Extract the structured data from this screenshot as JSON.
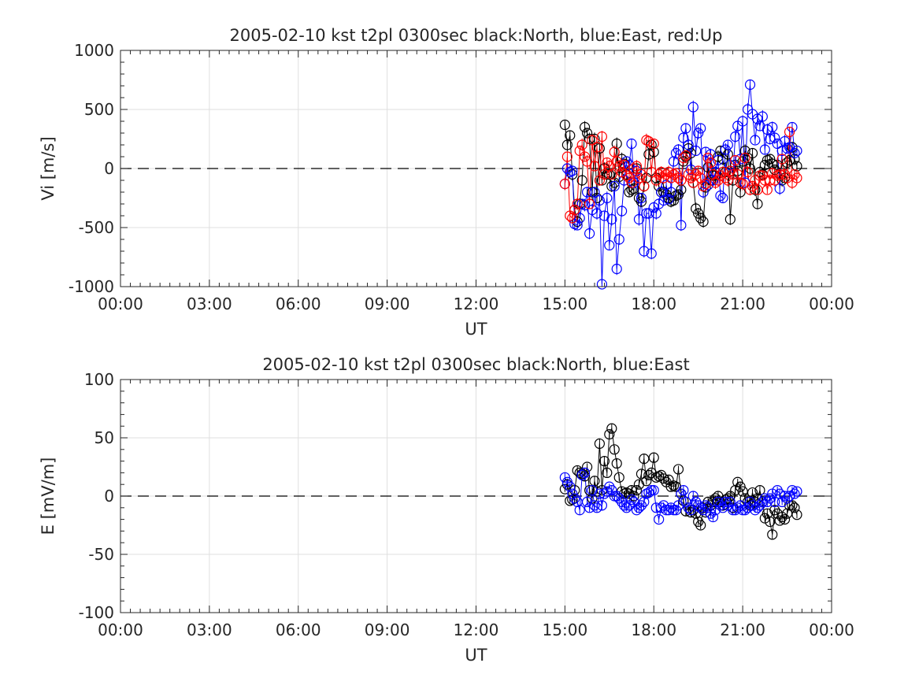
{
  "chart_data": [
    {
      "type": "scatter",
      "title": "2005-02-10 kst t2pl 0300sec black:North, blue:East, red:Up",
      "xlabel": "UT",
      "ylabel": "Vi [m/s]",
      "xlim": [
        0,
        24
      ],
      "ylim": [
        -1000,
        1000
      ],
      "xticks": [
        "00:00",
        "03:00",
        "06:00",
        "09:00",
        "12:00",
        "15:00",
        "18:00",
        "21:00",
        "00:00"
      ],
      "yticks": [
        "-1000",
        "-500",
        "0",
        "500",
        "1000"
      ],
      "grid": true,
      "reference_line": 0,
      "marker": "open circle with error bars",
      "series": [
        {
          "color": "#000000",
          "x": [
            15.0,
            15.08,
            15.17,
            15.25,
            15.33,
            15.42,
            15.5,
            15.58,
            15.67,
            15.75,
            15.83,
            15.92,
            16.0,
            16.08,
            16.17,
            16.25,
            16.33,
            16.42,
            16.5,
            16.58,
            16.67,
            16.75,
            16.83,
            16.92,
            17.0,
            17.08,
            17.17,
            17.25,
            17.33,
            17.42,
            17.5,
            17.58,
            17.67,
            17.75,
            17.83,
            17.92,
            18.0,
            18.08,
            18.17,
            18.25,
            18.33,
            18.42,
            18.5,
            18.58,
            18.67,
            18.75,
            18.83,
            18.92,
            19.0,
            19.08,
            19.17,
            19.25,
            19.33,
            19.42,
            19.5,
            19.58,
            19.67,
            19.75,
            19.83,
            19.92,
            20.0,
            20.08,
            20.17,
            20.25,
            20.33,
            20.42,
            20.5,
            20.58,
            20.67,
            20.75,
            20.83,
            20.92,
            21.0,
            21.08,
            21.17,
            21.25,
            21.33,
            21.42,
            21.5,
            21.58,
            21.67,
            21.75,
            21.83,
            21.92,
            22.0,
            22.08,
            22.17,
            22.25,
            22.33,
            22.42,
            22.5,
            22.58,
            22.67,
            22.75,
            22.83
          ],
          "y": [
            370,
            200,
            280,
            -50,
            -350,
            -450,
            -300,
            -100,
            350,
            300,
            250,
            -200,
            250,
            -250,
            170,
            -100,
            0,
            -50,
            -50,
            -150,
            -120,
            210,
            -70,
            80,
            40,
            -50,
            -200,
            -180,
            -170,
            0,
            -250,
            -280,
            -150,
            -80,
            120,
            200,
            140,
            -80,
            -150,
            -200,
            -200,
            -220,
            -250,
            -280,
            -270,
            -230,
            -220,
            -180,
            60,
            100,
            170,
            130,
            -120,
            -340,
            -380,
            -420,
            -450,
            -160,
            10,
            -100,
            -60,
            -60,
            100,
            150,
            80,
            -30,
            120,
            -430,
            -100,
            30,
            -20,
            -200,
            60,
            150,
            90,
            0,
            130,
            -180,
            -300,
            -30,
            -50,
            30,
            70,
            80,
            40,
            -10,
            30,
            -50,
            -100,
            -80,
            50,
            70,
            180,
            80,
            20
          ]
        },
        {
          "color": "#0000ff",
          "x": [
            15.0,
            15.08,
            15.17,
            15.25,
            15.33,
            15.42,
            15.5,
            15.58,
            15.67,
            15.75,
            15.83,
            15.92,
            16.0,
            16.08,
            16.17,
            16.25,
            16.33,
            16.42,
            16.5,
            16.58,
            16.67,
            16.75,
            16.83,
            16.92,
            17.0,
            17.08,
            17.17,
            17.25,
            17.33,
            17.42,
            17.5,
            17.58,
            17.67,
            17.75,
            17.83,
            17.92,
            18.0,
            18.08,
            18.17,
            18.25,
            18.33,
            18.42,
            18.5,
            18.58,
            18.67,
            18.75,
            18.83,
            18.92,
            19.0,
            19.08,
            19.17,
            19.25,
            19.33,
            19.42,
            19.5,
            19.58,
            19.67,
            19.75,
            19.83,
            19.92,
            20.0,
            20.08,
            20.17,
            20.25,
            20.33,
            20.42,
            20.5,
            20.58,
            20.67,
            20.75,
            20.83,
            20.92,
            21.0,
            21.08,
            21.17,
            21.25,
            21.33,
            21.42,
            21.5,
            21.58,
            21.67,
            21.75,
            21.83,
            21.92,
            22.0,
            22.08,
            22.17,
            22.25,
            22.33,
            22.42,
            22.5,
            22.58,
            22.67,
            22.75,
            22.83
          ],
          "y": [
            -130,
            0,
            -30,
            -20,
            -470,
            -480,
            -420,
            -300,
            -310,
            -200,
            -550,
            -350,
            -200,
            -380,
            -270,
            -980,
            -400,
            -250,
            -650,
            -430,
            -150,
            -850,
            -600,
            -360,
            -100,
            60,
            30,
            210,
            -120,
            -20,
            -430,
            -250,
            -700,
            -380,
            -380,
            -720,
            -330,
            -380,
            -300,
            -200,
            -270,
            -140,
            -260,
            -200,
            60,
            130,
            160,
            -480,
            260,
            340,
            200,
            -10,
            520,
            150,
            300,
            340,
            -200,
            140,
            -140,
            120,
            -100,
            -30,
            70,
            -230,
            -250,
            160,
            200,
            30,
            -50,
            270,
            360,
            80,
            400,
            -120,
            500,
            710,
            460,
            240,
            420,
            360,
            440,
            160,
            330,
            250,
            350,
            260,
            210,
            -170,
            150,
            230,
            170,
            180,
            350,
            130,
            150
          ]
        },
        {
          "color": "#ff0000",
          "x": [
            15.0,
            15.08,
            15.17,
            15.25,
            15.33,
            15.42,
            15.5,
            15.58,
            15.67,
            15.75,
            15.83,
            15.92,
            16.0,
            16.08,
            16.17,
            16.25,
            16.33,
            16.42,
            16.5,
            16.58,
            16.67,
            16.75,
            16.83,
            16.92,
            17.0,
            17.08,
            17.17,
            17.25,
            17.33,
            17.42,
            17.5,
            17.58,
            17.67,
            17.75,
            17.83,
            17.92,
            18.0,
            18.08,
            18.17,
            18.25,
            18.33,
            18.42,
            18.5,
            18.58,
            18.67,
            18.75,
            18.83,
            18.92,
            19.0,
            19.08,
            19.17,
            19.25,
            19.33,
            19.42,
            19.5,
            19.58,
            19.67,
            19.75,
            19.83,
            19.92,
            20.0,
            20.08,
            20.17,
            20.25,
            20.33,
            20.42,
            20.5,
            20.58,
            20.67,
            20.75,
            20.83,
            20.92,
            21.0,
            21.08,
            21.17,
            21.25,
            21.33,
            21.42,
            21.5,
            21.58,
            21.67,
            21.75,
            21.83,
            21.92,
            22.0,
            22.08,
            22.17,
            22.25,
            22.33,
            22.42,
            22.5,
            22.58,
            22.67,
            22.75,
            22.83
          ],
          "y": [
            -130,
            100,
            -400,
            -420,
            -350,
            -300,
            150,
            200,
            100,
            60,
            -300,
            240,
            20,
            180,
            -100,
            270,
            -50,
            50,
            20,
            -50,
            140,
            60,
            20,
            -30,
            30,
            -60,
            -80,
            -120,
            0,
            20,
            -80,
            -50,
            -150,
            240,
            230,
            -30,
            210,
            -100,
            -50,
            -30,
            -80,
            -50,
            -30,
            -80,
            -50,
            -40,
            -80,
            -100,
            90,
            110,
            -50,
            -80,
            -120,
            -50,
            -20,
            -80,
            -150,
            -130,
            90,
            50,
            -50,
            -120,
            -100,
            -60,
            -30,
            -80,
            -100,
            -20,
            -50,
            70,
            -50,
            -120,
            -130,
            90,
            -30,
            -180,
            -150,
            -100,
            -180,
            -60,
            -60,
            -100,
            -180,
            -100,
            -40,
            -100,
            -60,
            -50,
            80,
            -50,
            -80,
            310,
            -120,
            -50,
            -80
          ]
        }
      ]
    },
    {
      "type": "scatter",
      "title": "2005-02-10 kst t2pl 0300sec black:North, blue:East",
      "xlabel": "UT",
      "ylabel": "E [mV/m]",
      "xlim": [
        0,
        24
      ],
      "ylim": [
        -100,
        100
      ],
      "xticks": [
        "00:00",
        "03:00",
        "06:00",
        "09:00",
        "12:00",
        "15:00",
        "18:00",
        "21:00",
        "00:00"
      ],
      "yticks": [
        "-100",
        "-50",
        "0",
        "50",
        "100"
      ],
      "grid": true,
      "reference_line": 0,
      "marker": "open circle with error bars",
      "series": [
        {
          "color": "#000000",
          "x": [
            15.0,
            15.08,
            15.17,
            15.25,
            15.33,
            15.42,
            15.5,
            15.58,
            15.67,
            15.75,
            15.83,
            15.92,
            16.0,
            16.08,
            16.17,
            16.25,
            16.33,
            16.42,
            16.5,
            16.58,
            16.67,
            16.75,
            16.83,
            16.92,
            17.0,
            17.08,
            17.17,
            17.25,
            17.33,
            17.42,
            17.5,
            17.58,
            17.67,
            17.75,
            17.83,
            17.92,
            18.0,
            18.08,
            18.17,
            18.25,
            18.33,
            18.42,
            18.5,
            18.58,
            18.67,
            18.75,
            18.83,
            18.92,
            19.0,
            19.08,
            19.17,
            19.25,
            19.33,
            19.42,
            19.5,
            19.58,
            19.67,
            19.75,
            19.83,
            19.92,
            20.0,
            20.08,
            20.17,
            20.25,
            20.33,
            20.42,
            20.5,
            20.58,
            20.67,
            20.75,
            20.83,
            20.92,
            21.0,
            21.08,
            21.17,
            21.25,
            21.33,
            21.42,
            21.5,
            21.58,
            21.67,
            21.75,
            21.83,
            21.92,
            22.0,
            22.08,
            22.17,
            22.25,
            22.33,
            22.42,
            22.5,
            22.58,
            22.67,
            22.75,
            22.83
          ],
          "y": [
            6,
            10,
            -4,
            -3,
            5,
            22,
            20,
            19,
            17,
            25,
            5,
            -2,
            13,
            4,
            45,
            5,
            30,
            20,
            53,
            58,
            40,
            28,
            16,
            4,
            2,
            3,
            2,
            5,
            0,
            5,
            10,
            19,
            32,
            13,
            18,
            20,
            33,
            16,
            17,
            18,
            15,
            12,
            14,
            8,
            9,
            8,
            23,
            2,
            -4,
            -13,
            -10,
            -14,
            -12,
            -15,
            -22,
            -25,
            -10,
            -14,
            -5,
            -8,
            -5,
            -2,
            0,
            -5,
            -8,
            -3,
            -2,
            0,
            -10,
            5,
            12,
            8,
            4,
            -2,
            -5,
            -8,
            3,
            -5,
            -2,
            5,
            -5,
            -19,
            -15,
            -22,
            -33,
            -12,
            -15,
            -21,
            -18,
            -20,
            -15,
            -8,
            -8,
            -10,
            -16
          ]
        },
        {
          "color": "#0000ff",
          "x": [
            15.0,
            15.08,
            15.17,
            15.25,
            15.33,
            15.42,
            15.5,
            15.58,
            15.67,
            15.75,
            15.83,
            15.92,
            16.0,
            16.08,
            16.17,
            16.25,
            16.33,
            16.42,
            16.5,
            16.58,
            16.67,
            16.75,
            16.83,
            16.92,
            17.0,
            17.08,
            17.17,
            17.25,
            17.33,
            17.42,
            17.5,
            17.58,
            17.67,
            17.75,
            17.83,
            17.92,
            18.0,
            18.08,
            18.17,
            18.25,
            18.33,
            18.42,
            18.5,
            18.58,
            18.67,
            18.75,
            18.83,
            18.92,
            19.0,
            19.08,
            19.17,
            19.25,
            19.33,
            19.42,
            19.5,
            19.58,
            19.67,
            19.75,
            19.83,
            19.92,
            20.0,
            20.08,
            20.17,
            20.25,
            20.33,
            20.42,
            20.5,
            20.58,
            20.67,
            20.75,
            20.83,
            20.92,
            21.0,
            21.08,
            21.17,
            21.25,
            21.33,
            21.42,
            21.5,
            21.58,
            21.67,
            21.75,
            21.83,
            21.92,
            22.0,
            22.08,
            22.17,
            22.25,
            22.33,
            22.42,
            22.5,
            22.58,
            22.67,
            22.75,
            22.83
          ],
          "y": [
            16,
            12,
            8,
            2,
            -2,
            -5,
            -12,
            18,
            20,
            -5,
            -10,
            5,
            -8,
            -10,
            2,
            -8,
            2,
            4,
            8,
            5,
            0,
            0,
            -2,
            -5,
            -8,
            -10,
            -8,
            -3,
            -5,
            -12,
            -10,
            -8,
            -5,
            2,
            3,
            5,
            5,
            -10,
            -20,
            -10,
            -8,
            -12,
            -12,
            -10,
            -12,
            -12,
            -8,
            2,
            5,
            -5,
            -10,
            -12,
            0,
            -5,
            -8,
            -10,
            -12,
            -8,
            -10,
            -15,
            -18,
            -12,
            -5,
            -8,
            -10,
            -5,
            -8,
            -5,
            -12,
            -12,
            -10,
            -8,
            -12,
            -12,
            -10,
            -5,
            -8,
            -12,
            -10,
            -8,
            -5,
            -2,
            -5,
            -2,
            2,
            -5,
            5,
            2,
            -5,
            0,
            -2,
            0,
            5,
            2,
            4
          ]
        }
      ]
    }
  ]
}
